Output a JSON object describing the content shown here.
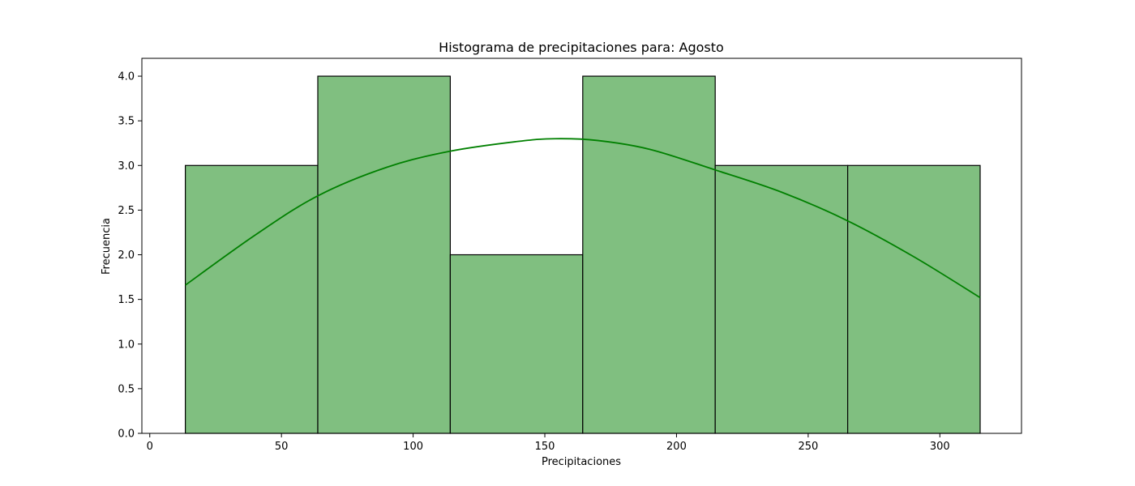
{
  "chart_data": {
    "type": "bar",
    "title": "Histograma de precipitaciones para: Agosto",
    "xlabel": "Precipitaciones",
    "ylabel": "Frecuencia",
    "xlim": [
      -3,
      331
    ],
    "ylim": [
      0,
      4.2
    ],
    "grid": false,
    "legend": "none",
    "xticks": [
      0,
      50,
      100,
      150,
      200,
      250,
      300
    ],
    "xtick_labels": [
      "0",
      "50",
      "100",
      "150",
      "200",
      "250",
      "300"
    ],
    "yticks": [
      0,
      0.5,
      1.0,
      1.5,
      2.0,
      2.5,
      3.0,
      3.5,
      4.0
    ],
    "ytick_labels": [
      "0.0",
      "0.5",
      "1.0",
      "1.5",
      "2.0",
      "2.5",
      "3.0",
      "3.5",
      "4.0"
    ],
    "bins": [
      {
        "start": 13.5,
        "end": 63.8,
        "count": 3
      },
      {
        "start": 63.8,
        "end": 114.1,
        "count": 4
      },
      {
        "start": 114.1,
        "end": 164.4,
        "count": 2
      },
      {
        "start": 164.4,
        "end": 214.7,
        "count": 4
      },
      {
        "start": 214.7,
        "end": 265.0,
        "count": 3
      },
      {
        "start": 265.0,
        "end": 315.3,
        "count": 3
      }
    ],
    "kde_curve": {
      "x": [
        13.5,
        40,
        63.8,
        90,
        114.1,
        140,
        154,
        170,
        190,
        214.7,
        240,
        265.0,
        290,
        315.3
      ],
      "y": [
        1.66,
        2.22,
        2.66,
        2.98,
        3.16,
        3.27,
        3.3,
        3.28,
        3.18,
        2.95,
        2.7,
        2.38,
        1.98,
        1.52
      ]
    },
    "colors": {
      "bar_fill": "#80bf80",
      "bar_edge": "#000000",
      "kde_line": "#008000",
      "axes": "#000000"
    }
  }
}
